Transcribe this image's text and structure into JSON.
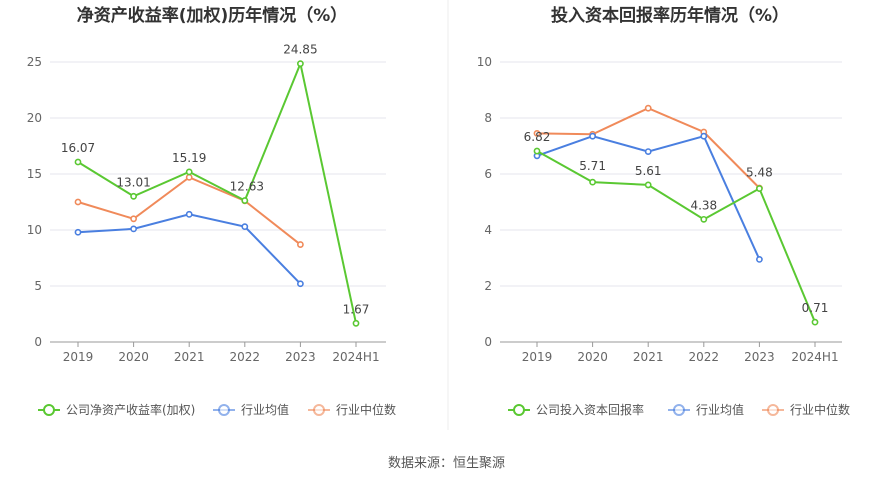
{
  "chart_data": [
    {
      "type": "line",
      "title": "净资产收益率(加权)历年情况（%）",
      "categories": [
        "2019",
        "2020",
        "2021",
        "2022",
        "2023",
        "2024H1"
      ],
      "ylim": [
        0,
        25
      ],
      "yticks": [
        0,
        5,
        10,
        15,
        20,
        25
      ],
      "grid": true,
      "legend_placement": "bottom",
      "series": [
        {
          "name": "公司净资产收益率(加权)",
          "color": "#5ac832",
          "values": [
            16.07,
            13.01,
            15.19,
            12.63,
            24.85,
            1.67
          ],
          "labels": [
            "16.07",
            "13.01",
            "15.19",
            "12.63",
            "24.85",
            "1.67"
          ]
        },
        {
          "name": "行业均值",
          "color": "#4a7fe0",
          "values": [
            9.8,
            10.1,
            11.4,
            10.3,
            5.2,
            null
          ]
        },
        {
          "name": "行业中位数",
          "color": "#f08a5a",
          "values": [
            12.5,
            11.0,
            14.7,
            12.6,
            8.7,
            null
          ]
        }
      ]
    },
    {
      "type": "line",
      "title": "投入资本回报率历年情况（%）",
      "categories": [
        "2019",
        "2020",
        "2021",
        "2022",
        "2023",
        "2024H1"
      ],
      "ylim": [
        0,
        10
      ],
      "yticks": [
        0,
        2,
        4,
        6,
        8,
        10
      ],
      "grid": true,
      "legend_placement": "bottom",
      "series": [
        {
          "name": "公司投入资本回报率",
          "color": "#5ac832",
          "values": [
            6.82,
            5.71,
            5.61,
            4.38,
            5.48,
            0.71
          ],
          "labels": [
            "6.82",
            "5.71",
            "5.61",
            "4.38",
            "5.48",
            "0.71"
          ]
        },
        {
          "name": "行业均值",
          "color": "#4a7fe0",
          "values": [
            6.65,
            7.35,
            6.8,
            7.35,
            2.95,
            null
          ]
        },
        {
          "name": "行业中位数",
          "color": "#f08a5a",
          "values": [
            7.45,
            7.42,
            8.35,
            7.5,
            5.5,
            null
          ]
        }
      ]
    }
  ],
  "source_text": "数据来源：恒生聚源"
}
